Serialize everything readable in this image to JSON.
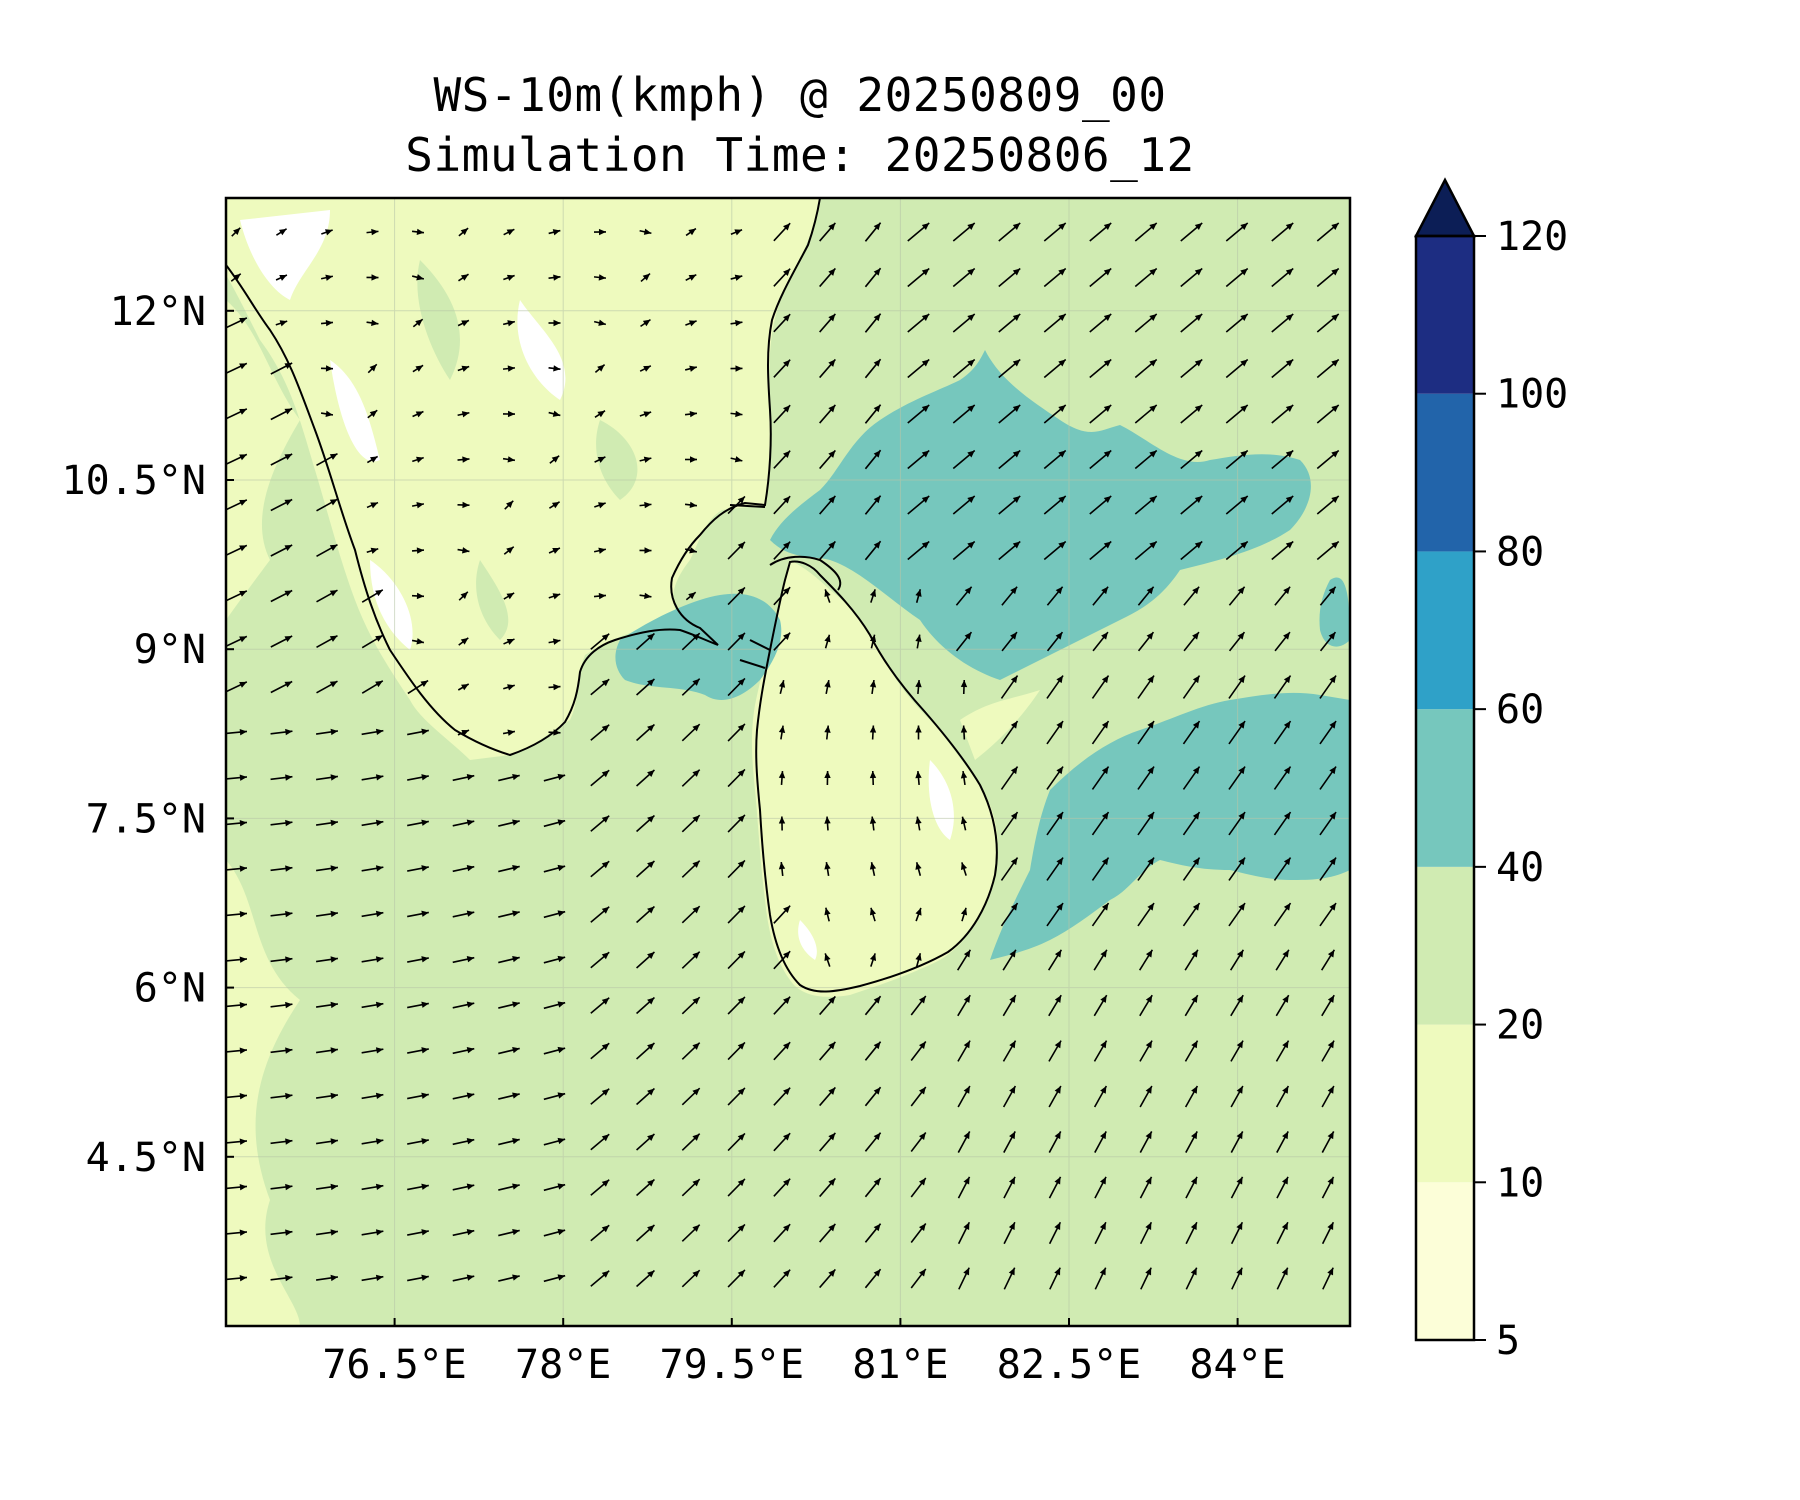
{
  "title": {
    "line1": "WS-10m(kmph) @ 20250809_00",
    "line2": "Simulation Time: 20250806_12"
  },
  "map": {
    "lon_range": [
      75.0,
      85.0
    ],
    "lat_range": [
      3.0,
      13.0
    ],
    "x_ticks": [
      {
        "value": 76.5,
        "label": "76.5°E"
      },
      {
        "value": 78.0,
        "label": "78°E"
      },
      {
        "value": 79.5,
        "label": "79.5°E"
      },
      {
        "value": 81.0,
        "label": "81°E"
      },
      {
        "value": 82.5,
        "label": "82.5°E"
      },
      {
        "value": 84.0,
        "label": "84°E"
      }
    ],
    "y_ticks": [
      {
        "value": 12.0,
        "label": "12°N"
      },
      {
        "value": 10.5,
        "label": "10.5°N"
      },
      {
        "value": 9.0,
        "label": "9°N"
      },
      {
        "value": 7.5,
        "label": "7.5°N"
      },
      {
        "value": 6.0,
        "label": "6°N"
      },
      {
        "value": 4.5,
        "label": "4.5°N"
      }
    ],
    "gridlines": true
  },
  "colorbar": {
    "levels": [
      "5",
      "10",
      "20",
      "40",
      "60",
      "80",
      "100",
      "120"
    ],
    "colors": [
      "#fcfed8",
      "#eefabe",
      "#d0ebb2",
      "#76c7bd",
      "#2fa1c8",
      "#2264aa",
      "#1d2d82"
    ],
    "extend_color": "#0c1e56",
    "extend": "max"
  },
  "colors": {
    "land_low": "#fcfed8",
    "land_mid": "#eefabe",
    "sea": "#d0ebb2",
    "strong": "#76c7bd",
    "coast": "#000000",
    "arrow": "#000000"
  }
}
